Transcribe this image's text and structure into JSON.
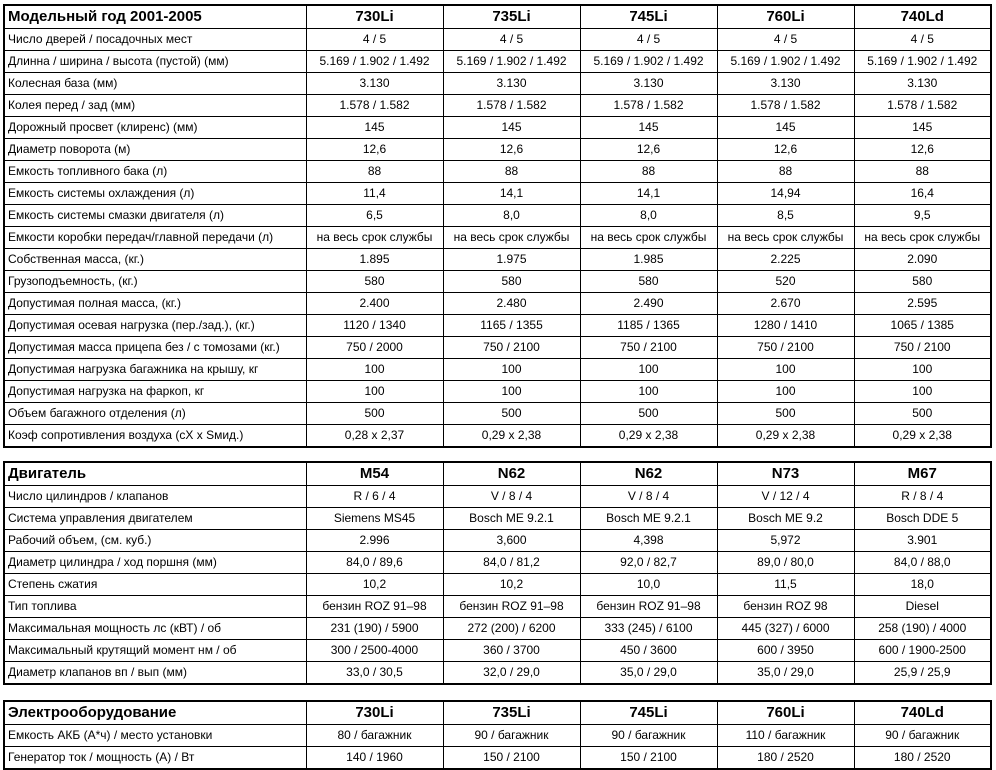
{
  "tables": [
    {
      "id": "body",
      "title": "Модельный год 2001-2005",
      "columns": [
        "730Li",
        "735Li",
        "745Li",
        "760Li",
        "740Ld"
      ],
      "rows": [
        {
          "label": "Число дверей / посадочных мест",
          "values": [
            "4 / 5",
            "4 / 5",
            "4 / 5",
            "4 / 5",
            "4 / 5"
          ]
        },
        {
          "label": "Длинна / ширина / высота (пустой) (мм)",
          "values": [
            "5.169 / 1.902 / 1.492",
            "5.169 / 1.902 / 1.492",
            "5.169 / 1.902 / 1.492",
            "5.169 / 1.902 / 1.492",
            "5.169 / 1.902 / 1.492"
          ]
        },
        {
          "label": "Колесная база (мм)",
          "values": [
            "3.130",
            "3.130",
            "3.130",
            "3.130",
            "3.130"
          ]
        },
        {
          "label": "Колея перед / зад  (мм)",
          "values": [
            "1.578 / 1.582",
            "1.578 / 1.582",
            "1.578 / 1.582",
            "1.578 / 1.582",
            "1.578 / 1.582"
          ]
        },
        {
          "label": "Дорожный просвет (клиренс)  (мм)",
          "values": [
            "145",
            "145",
            "145",
            "145",
            "145"
          ]
        },
        {
          "label": "Диаметр поворота (м)",
          "values": [
            "12,6",
            "12,6",
            "12,6",
            "12,6",
            "12,6"
          ]
        },
        {
          "label": "Емкость топливного бака (л)",
          "values": [
            "88",
            "88",
            "88",
            "88",
            "88"
          ]
        },
        {
          "label": "Емкость системы охлаждения (л)",
          "values": [
            "11,4",
            "14,1",
            "14,1",
            "14,94",
            "16,4"
          ]
        },
        {
          "label": "Емкость системы смазки двигателя (л)",
          "values": [
            "6,5",
            "8,0",
            "8,0",
            "8,5",
            "9,5"
          ]
        },
        {
          "label": "Емкости коробки передач/главной передачи (л)",
          "values": [
            "на весь срок службы",
            "на весь срок службы",
            "на весь срок службы",
            "на весь срок службы",
            "на весь срок службы"
          ]
        },
        {
          "label": "Собственная масса, (кг.)",
          "values": [
            "1.895",
            "1.975",
            "1.985",
            "2.225",
            "2.090"
          ]
        },
        {
          "label": "Грузоподъемность, (кг.)",
          "values": [
            "580",
            "580",
            "580",
            "520",
            "580"
          ]
        },
        {
          "label": "Допустимая полная масса, (кг.)",
          "values": [
            "2.400",
            "2.480",
            "2.490",
            "2.670",
            "2.595"
          ]
        },
        {
          "label": "Допустимая осевая нагрузка (пер./зад.), (кг.)",
          "values": [
            "1120 / 1340",
            "1165 / 1355",
            "1185 / 1365",
            "1280 / 1410",
            "1065 / 1385"
          ]
        },
        {
          "label": "Допустимая масса прицепа без / с томозами (кг.)",
          "values": [
            "750 / 2000",
            "750 / 2100",
            "750 / 2100",
            "750 / 2100",
            "750 / 2100"
          ]
        },
        {
          "label": "Допустимая нагрузка  багажника на крышу, кг",
          "values": [
            "100",
            "100",
            "100",
            "100",
            "100"
          ]
        },
        {
          "label": "Допустимая нагрузка на фаркоп, кг",
          "values": [
            "100",
            "100",
            "100",
            "100",
            "100"
          ]
        },
        {
          "label": "Объем багажного отделения (л)",
          "values": [
            "500",
            "500",
            "500",
            "500",
            "500"
          ]
        },
        {
          "label": "Коэф сопротивления воздуха (cX x Sмид.)",
          "values": [
            "0,28 x 2,37",
            "0,29 x 2,38",
            "0,29 x 2,38",
            "0,29 x 2,38",
            "0,29 x 2,38"
          ]
        }
      ]
    },
    {
      "id": "engine",
      "title": "Двигатель",
      "columns": [
        "M54",
        "N62",
        "N62",
        "N73",
        "M67"
      ],
      "rows": [
        {
          "label": "Число цилиндров / клапанов",
          "values": [
            "R / 6 / 4",
            "V / 8 / 4",
            "V / 8 / 4",
            "V / 12 / 4",
            "R / 8 / 4"
          ]
        },
        {
          "label": "Система управления двигателем",
          "values": [
            "Siemens MS45",
            "Bosch ME 9.2.1",
            "Bosch ME 9.2.1",
            "Bosch ME 9.2",
            "Bosch DDE 5"
          ]
        },
        {
          "label": "Рабочий объем, (см. куб.)",
          "values": [
            "2.996",
            "3,600",
            "4,398",
            "5,972",
            "3.901"
          ]
        },
        {
          "label": "Диаметр цилиндра / ход поршня  (мм)",
          "values": [
            "84,0 / 89,6",
            "84,0 / 81,2",
            "92,0 / 82,7",
            "89,0 / 80,0",
            "84,0 / 88,0"
          ]
        },
        {
          "label": "Степень сжатия",
          "values": [
            "10,2",
            "10,2",
            "10,0",
            "11,5",
            "18,0"
          ]
        },
        {
          "label": "Тип топлива",
          "values": [
            "бензин ROZ 91–98",
            "бензин ROZ 91–98",
            "бензин ROZ 91–98",
            "бензин ROZ 98",
            "Diesel"
          ]
        },
        {
          "label": "Максимальная мощность лс (кВТ) / об",
          "values": [
            "231 (190) / 5900",
            "272 (200) / 6200",
            "333 (245) / 6100",
            "445 (327) / 6000",
            "258 (190) / 4000"
          ]
        },
        {
          "label": "Максимальный крутящий момент нм / об",
          "values": [
            "300 / 2500-4000",
            "360 / 3700",
            "450 / 3600",
            "600 / 3950",
            "600 / 1900-2500"
          ]
        },
        {
          "label": "Диаметр клапанов вп / вып (мм)",
          "values": [
            "33,0 / 30,5",
            "32,0 / 29,0",
            "35,0 / 29,0",
            "35,0 / 29,0",
            "25,9 / 25,9"
          ]
        }
      ]
    },
    {
      "id": "electrical",
      "title": "Электрооборудование",
      "columns": [
        "730Li",
        "735Li",
        "745Li",
        "760Li",
        "740Ld"
      ],
      "rows": [
        {
          "label": "Емкость АКБ (А*ч) / место установки",
          "values": [
            "80 / багажник",
            "90 / багажник",
            "90 / багажник",
            "110 / багажник",
            "90 / багажник"
          ]
        },
        {
          "label": "Генератор ток / мощность (А) / Вт",
          "values": [
            "140 / 1960",
            "150 / 2100",
            "150 / 2100",
            "180 / 2520",
            "180 / 2520"
          ]
        }
      ]
    }
  ]
}
